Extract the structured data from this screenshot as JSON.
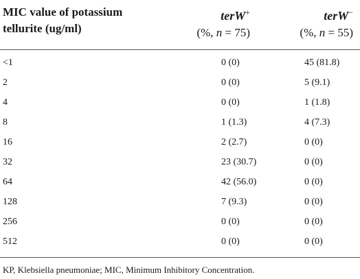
{
  "table": {
    "header": {
      "col1": "MIC value of potassium tellurite (ug/ml)",
      "col2_gene": "terW",
      "col2_sign": "+",
      "col2_sub_prefix": "(%, ",
      "col2_n_var": "n",
      "col2_sub_suffix": " = 75)",
      "col3_gene": "terW",
      "col3_sign": "−",
      "col3_sub_prefix": "(%, ",
      "col3_n_var": "n",
      "col3_sub_suffix": " = 55)"
    },
    "rows": [
      {
        "mic": "<1",
        "pos": "0 (0)",
        "neg": "45 (81.8)"
      },
      {
        "mic": "2",
        "pos": "0 (0)",
        "neg": "5 (9.1)"
      },
      {
        "mic": "4",
        "pos": "0 (0)",
        "neg": "1 (1.8)"
      },
      {
        "mic": "8",
        "pos": "1 (1.3)",
        "neg": "4 (7.3)"
      },
      {
        "mic": "16",
        "pos": "2 (2.7)",
        "neg": "0 (0)"
      },
      {
        "mic": "32",
        "pos": "23 (30.7)",
        "neg": "0 (0)"
      },
      {
        "mic": "64",
        "pos": "42 (56.0)",
        "neg": "0 (0)"
      },
      {
        "mic": "128",
        "pos": "7 (9.3)",
        "neg": "0 (0)"
      },
      {
        "mic": "256",
        "pos": "0 (0)",
        "neg": "0 (0)"
      },
      {
        "mic": "512",
        "pos": "0 (0)",
        "neg": "0 (0)"
      }
    ]
  },
  "footnote": "KP, Klebsiella pneumoniae; MIC, Minimum Inhibitory Concentration."
}
